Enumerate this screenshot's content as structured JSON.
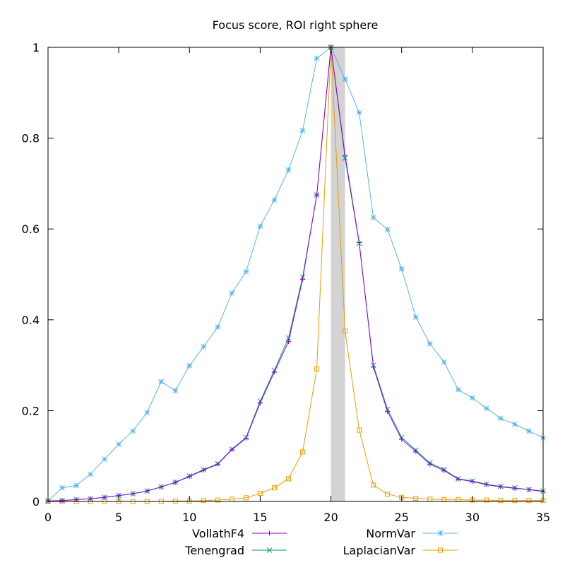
{
  "chart_data": {
    "type": "line",
    "title": "Focus score, ROI right sphere",
    "xlabel": "",
    "ylabel": "",
    "xlim": [
      0,
      35
    ],
    "ylim": [
      0,
      1
    ],
    "xticks": [
      0,
      5,
      10,
      15,
      20,
      25,
      30,
      35
    ],
    "yticks": [
      0,
      0.2,
      0.4,
      0.6,
      0.8,
      1
    ],
    "ytick_labels": [
      "0",
      "0.2",
      "0.4",
      "0.6",
      "0.8",
      "1"
    ],
    "grid": false,
    "legend_position": "bottom",
    "highlight_band": {
      "x0": 20,
      "x1": 21,
      "color": "#d3d3d3"
    },
    "x": [
      0,
      1,
      2,
      3,
      4,
      5,
      6,
      7,
      8,
      9,
      10,
      11,
      12,
      13,
      14,
      15,
      16,
      17,
      18,
      19,
      20,
      21,
      22,
      23,
      24,
      25,
      26,
      27,
      28,
      29,
      30,
      31,
      32,
      33,
      34,
      35
    ],
    "series": [
      {
        "name": "VollathF4",
        "color": "#9400d3",
        "marker": "plus",
        "values": [
          0.001,
          0.002,
          0.004,
          0.006,
          0.009,
          0.013,
          0.017,
          0.023,
          0.032,
          0.042,
          0.055,
          0.069,
          0.082,
          0.114,
          0.139,
          0.217,
          0.285,
          0.352,
          0.489,
          0.675,
          1.0,
          0.762,
          0.57,
          0.296,
          0.198,
          0.137,
          0.11,
          0.082,
          0.068,
          0.049,
          0.044,
          0.037,
          0.032,
          0.029,
          0.026,
          0.022
        ]
      },
      {
        "name": "Tenengrad",
        "color": "#009e73",
        "marker": "cross",
        "values": [
          0.001,
          0.002,
          0.004,
          0.006,
          0.009,
          0.013,
          0.017,
          0.023,
          0.032,
          0.042,
          0.056,
          0.07,
          0.083,
          0.115,
          0.141,
          0.221,
          0.289,
          0.36,
          0.494,
          0.675,
          1.0,
          0.756,
          0.568,
          0.3,
          0.203,
          0.141,
          0.113,
          0.085,
          0.07,
          0.05,
          0.045,
          0.038,
          0.033,
          0.03,
          0.026,
          0.023
        ]
      },
      {
        "name": "NormVar",
        "color": "#56b4e9",
        "marker": "star",
        "values": [
          0.001,
          0.03,
          0.035,
          0.06,
          0.093,
          0.126,
          0.155,
          0.196,
          0.264,
          0.244,
          0.299,
          0.341,
          0.384,
          0.459,
          0.506,
          0.606,
          0.664,
          0.73,
          0.817,
          0.976,
          1.0,
          0.93,
          0.856,
          0.625,
          0.599,
          0.512,
          0.406,
          0.347,
          0.307,
          0.246,
          0.228,
          0.205,
          0.183,
          0.17,
          0.155,
          0.14
        ]
      },
      {
        "name": "LaplacianVar",
        "color": "#e69f00",
        "marker": "square",
        "values": [
          0.0,
          0.0,
          0.0,
          0.0,
          0.0,
          0.0,
          0.0,
          0.0,
          0.0,
          0.001,
          0.001,
          0.002,
          0.003,
          0.005,
          0.008,
          0.018,
          0.03,
          0.05,
          0.109,
          0.292,
          1.0,
          0.375,
          0.157,
          0.036,
          0.016,
          0.009,
          0.007,
          0.005,
          0.004,
          0.004,
          0.003,
          0.003,
          0.002,
          0.002,
          0.002,
          0.002
        ]
      }
    ]
  }
}
